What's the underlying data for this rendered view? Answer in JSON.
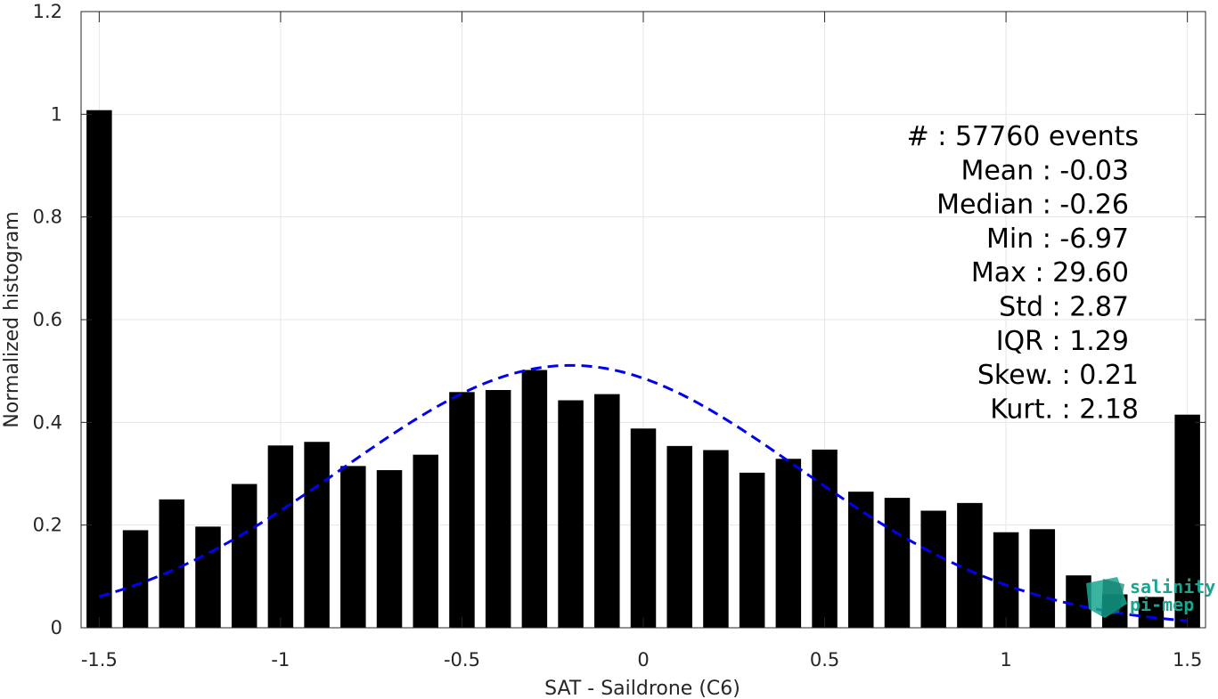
{
  "chart_data": {
    "type": "bar",
    "xlabel": "SAT - Saildrone (C6)",
    "ylabel": "Normalized histogram",
    "xlim": [
      -1.55,
      1.55
    ],
    "ylim": [
      0,
      1.2
    ],
    "xticks": [
      "-1.5",
      "-1",
      "-0.5",
      "0",
      "0.5",
      "1",
      "1.5"
    ],
    "xtick_values": [
      -1.5,
      -1,
      -0.5,
      0,
      0.5,
      1,
      1.5
    ],
    "yticks": [
      "0",
      "0.2",
      "0.4",
      "0.6",
      "0.8",
      "1",
      "1.2"
    ],
    "ytick_values": [
      0,
      0.2,
      0.4,
      0.6,
      0.8,
      1.0,
      1.2
    ],
    "grid": true,
    "bar_color": "#000000",
    "fit_color": "#0000ee",
    "fit_style": "dashed",
    "bins": [
      {
        "x": -1.5,
        "value": 1.008
      },
      {
        "x": -1.4,
        "value": 0.19
      },
      {
        "x": -1.3,
        "value": 0.25
      },
      {
        "x": -1.2,
        "value": 0.197
      },
      {
        "x": -1.1,
        "value": 0.28
      },
      {
        "x": -1.0,
        "value": 0.355
      },
      {
        "x": -0.9,
        "value": 0.362
      },
      {
        "x": -0.8,
        "value": 0.315
      },
      {
        "x": -0.7,
        "value": 0.307
      },
      {
        "x": -0.6,
        "value": 0.337
      },
      {
        "x": -0.5,
        "value": 0.459
      },
      {
        "x": -0.4,
        "value": 0.463
      },
      {
        "x": -0.3,
        "value": 0.502
      },
      {
        "x": -0.2,
        "value": 0.443
      },
      {
        "x": -0.1,
        "value": 0.455
      },
      {
        "x": 0.0,
        "value": 0.388
      },
      {
        "x": 0.1,
        "value": 0.354
      },
      {
        "x": 0.2,
        "value": 0.346
      },
      {
        "x": 0.3,
        "value": 0.302
      },
      {
        "x": 0.4,
        "value": 0.329
      },
      {
        "x": 0.5,
        "value": 0.347
      },
      {
        "x": 0.6,
        "value": 0.265
      },
      {
        "x": 0.7,
        "value": 0.253
      },
      {
        "x": 0.8,
        "value": 0.228
      },
      {
        "x": 0.9,
        "value": 0.243
      },
      {
        "x": 1.0,
        "value": 0.186
      },
      {
        "x": 1.1,
        "value": 0.192
      },
      {
        "x": 1.2,
        "value": 0.102
      },
      {
        "x": 1.3,
        "value": 0.065
      },
      {
        "x": 1.4,
        "value": 0.06
      },
      {
        "x": 1.5,
        "value": 0.415
      }
    ],
    "fit_curve": {
      "type": "gaussian",
      "x_range": [
        -1.5,
        1.5
      ],
      "peak": 0.511,
      "center": -0.2,
      "sigma": 0.63
    },
    "stats": [
      "#  : 57760 events",
      "Mean : -0.03",
      "Median : -0.26",
      "Min : -6.97",
      "Max : 29.60",
      "Std : 2.87",
      "IQR : 1.29",
      "Skew. : 0.21",
      "Kurt. : 2.18"
    ]
  },
  "logo": {
    "line1": "salinity",
    "line2": "pi-mep",
    "color": "#1aa591"
  }
}
